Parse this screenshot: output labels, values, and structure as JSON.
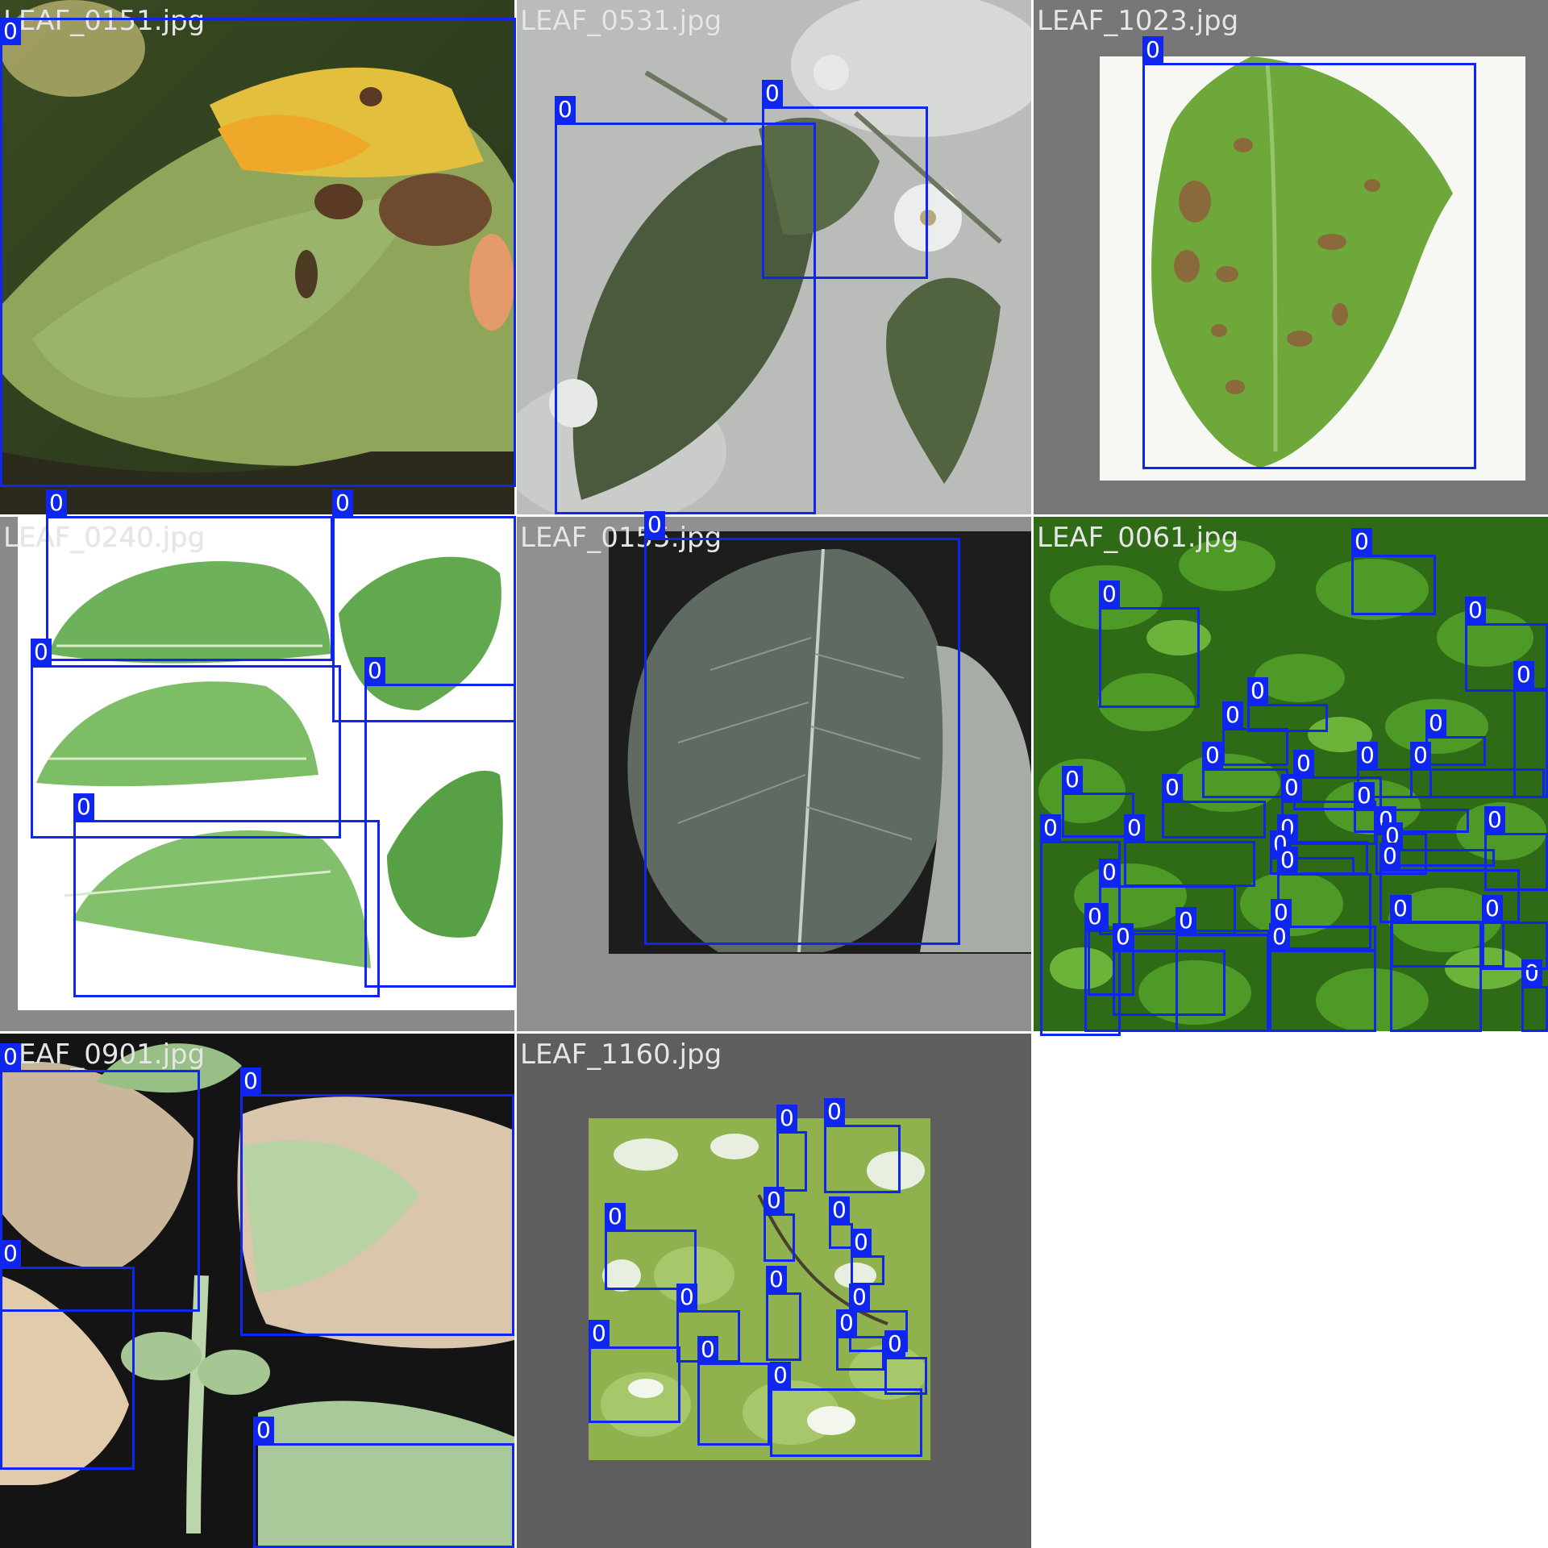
{
  "colors": {
    "box": "#0e26f0",
    "label_bg": "#0e26f0",
    "label_text": "#ffffff",
    "filename_text": "#e6e6e6"
  },
  "class_label": "0",
  "tiles": [
    {
      "filename": "LEAF_0151.jpg",
      "scene": "yellowing leaf with dark brown lesions",
      "box_count": 1
    },
    {
      "filename": "LEAF_0531.jpg",
      "scene": "dark green leaves with white blossoms",
      "box_count": 2
    },
    {
      "filename": "LEAF_1023.jpg",
      "scene": "single green leaf with brown spots on white",
      "box_count": 1
    },
    {
      "filename": "LEAF_0240.jpg",
      "scene": "several serrated green leaves on white",
      "box_count": 5
    },
    {
      "filename": "LEAF_0155.jpg",
      "scene": "large grey-green leaf on dark background",
      "box_count": 1
    },
    {
      "filename": "LEAF_0061.jpg",
      "scene": "dense foliage of many small green leaves",
      "box_count": 30
    },
    {
      "filename": "LEAF_0901.jpg",
      "scene": "plant with blighted brown leaves",
      "box_count": 4
    },
    {
      "filename": "LEAF_1160.jpg",
      "scene": "backlit canopy of light green leaves",
      "box_count": 14
    }
  ]
}
